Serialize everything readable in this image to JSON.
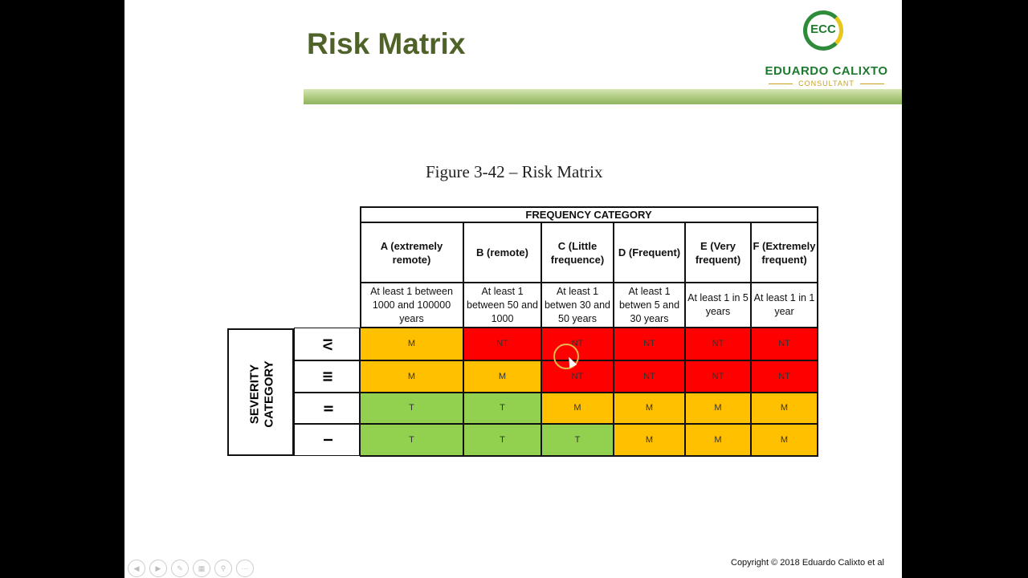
{
  "slide": {
    "title": "Risk Matrix",
    "figure_caption": "Figure 3-42 – Risk Matrix",
    "copyright": "Copyright © 2018 Eduardo Calixto et al"
  },
  "logo": {
    "initials": "ECC",
    "name": "EDUARDO CALIXTO",
    "subtitle": "CONSULTANT"
  },
  "colors": {
    "title": "#4f6228",
    "T": "#92d050",
    "M": "#ffc000",
    "NT": "#ff0000"
  },
  "matrix": {
    "frequency_header": "FREQUENCY CATEGORY",
    "severity_header_line1": "SEVERITY",
    "severity_header_line2": "CATEGORY",
    "columns": [
      {
        "label": "A (extremely remote)",
        "desc": "At least 1  between 1000 and  100000 years"
      },
      {
        "label": "B (remote)",
        "desc": "At least 1 between 50 and  1000"
      },
      {
        "label": "C (Little frequence)",
        "desc": "At least 1 betwen 30 and 50 years"
      },
      {
        "label": "D (Frequent)",
        "desc": "At least 1 betwen 5 and 30 years"
      },
      {
        "label": "E (Very frequent)",
        "desc": "At least 1 in 5 years"
      },
      {
        "label": "F (Extremely frequent)",
        "desc": "At least 1 in 1 year"
      }
    ],
    "rows": [
      {
        "severity": "IV",
        "cells": [
          "M",
          "NT",
          "NT",
          "NT",
          "NT",
          "NT"
        ]
      },
      {
        "severity": "III",
        "cells": [
          "M",
          "M",
          "NT",
          "NT",
          "NT",
          "NT"
        ]
      },
      {
        "severity": "II",
        "cells": [
          "T",
          "T",
          "M",
          "M",
          "M",
          "M"
        ]
      },
      {
        "severity": "I",
        "cells": [
          "T",
          "T",
          "T",
          "M",
          "M",
          "M"
        ]
      }
    ]
  },
  "nav_icons": [
    "back-icon",
    "forward-icon",
    "pen-icon",
    "slides-icon",
    "zoom-icon",
    "more-icon"
  ]
}
